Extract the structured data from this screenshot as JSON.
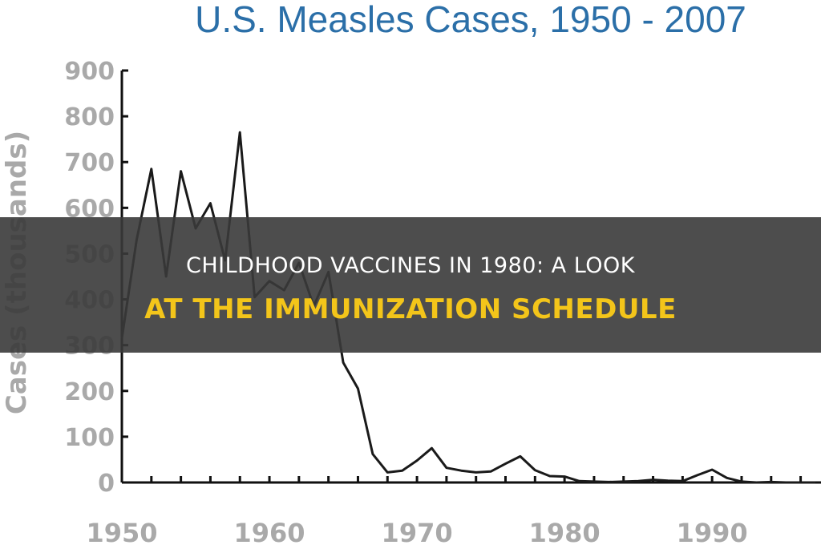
{
  "chart_data": {
    "type": "line",
    "title": "U.S. Measles Cases, 1950 - 2007",
    "xlabel": "",
    "ylabel": "Cases (thousands)",
    "xlim": [
      1950,
      1997
    ],
    "ylim": [
      0,
      900
    ],
    "yticks": [
      0,
      100,
      200,
      300,
      400,
      500,
      600,
      700,
      800,
      900
    ],
    "xticks": [
      1950,
      1960,
      1970,
      1980,
      1990
    ],
    "grid": false,
    "series": [
      {
        "x": [
          1950,
          1951,
          1952,
          1953,
          1954,
          1955,
          1956,
          1957,
          1958,
          1959,
          1960,
          1961,
          1962,
          1963,
          1964,
          1965,
          1966,
          1967,
          1968,
          1969,
          1970,
          1971,
          1972,
          1973,
          1974,
          1975,
          1976,
          1977,
          1978,
          1979,
          1980,
          1981,
          1982,
          1983,
          1984,
          1985,
          1986,
          1987,
          1988,
          1989,
          1990,
          1991,
          1992,
          1993,
          1994,
          1995,
          1996,
          1997
        ],
        "values": [
          315,
          530,
          685,
          450,
          680,
          555,
          610,
          485,
          765,
          405,
          440,
          420,
          480,
          385,
          460,
          262,
          205,
          62,
          22,
          26,
          48,
          75,
          32,
          26,
          22,
          24,
          41,
          57,
          27,
          14,
          13,
          3,
          2,
          1,
          2,
          3,
          6,
          4,
          3,
          16,
          28,
          10,
          2,
          0,
          1,
          0,
          0,
          0
        ]
      }
    ]
  },
  "banner": {
    "line1": "CHILDHOOD VACCINES IN 1980: A LOOK",
    "line2": "AT THE IMMUNIZATION SCHEDULE"
  },
  "colors": {
    "title": "#2b6fa8",
    "axis_text": "#a9a9a9",
    "line": "#1a1a1a",
    "banner_bg": "#3a3a3a",
    "banner_line1": "#ffffff",
    "banner_line2": "#f3c51a"
  }
}
